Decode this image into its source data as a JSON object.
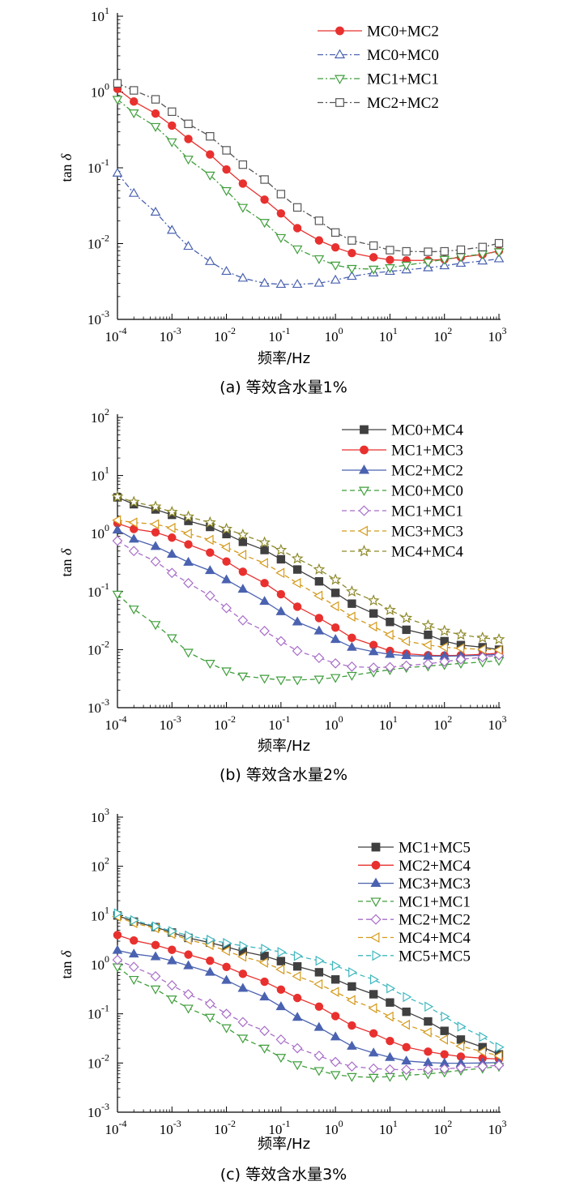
{
  "chart_data": [
    {
      "type": "line",
      "caption": "(a)  等效含水量1%",
      "xlabel": "频率/Hz",
      "ylabel_main": "tan ",
      "ylabel_symbol": "δ",
      "x_scale": "log",
      "y_scale": "log",
      "xlim": [
        0.0001,
        1000
      ],
      "ylim": [
        0.001,
        10
      ],
      "x_ticks": [
        {
          "mant": "10",
          "exp": "-4"
        },
        {
          "mant": "10",
          "exp": "-3"
        },
        {
          "mant": "10",
          "exp": "-2"
        },
        {
          "mant": "10",
          "exp": "-1"
        },
        {
          "mant": "10",
          "exp": "0"
        },
        {
          "mant": "10",
          "exp": "1"
        },
        {
          "mant": "10",
          "exp": "2"
        },
        {
          "mant": "10",
          "exp": "3"
        }
      ],
      "y_ticks": [
        {
          "mant": "10",
          "exp": "-3"
        },
        {
          "mant": "10",
          "exp": "-2"
        },
        {
          "mant": "10",
          "exp": "-1"
        },
        {
          "mant": "10",
          "exp": "0"
        },
        {
          "mant": "10",
          "exp": "1"
        }
      ],
      "legend_position": "top-right",
      "x": [
        0.0001,
        0.0002,
        0.0005,
        0.001,
        0.002,
        0.005,
        0.01,
        0.02,
        0.05,
        0.1,
        0.2,
        0.5,
        1,
        2,
        5,
        10,
        20,
        50,
        100,
        200,
        500,
        1000
      ],
      "series": [
        {
          "name": "MC0+MC2",
          "color": "#e8312f",
          "marker": "circle",
          "filled": true,
          "dash": "solid",
          "values": [
            1.1,
            0.75,
            0.52,
            0.36,
            0.24,
            0.15,
            0.095,
            0.062,
            0.038,
            0.025,
            0.016,
            0.011,
            0.0089,
            0.0075,
            0.0066,
            0.0061,
            0.006,
            0.006,
            0.0062,
            0.0066,
            0.0072,
            0.008
          ]
        },
        {
          "name": "MC0+MC0",
          "color": "#4a62b0",
          "marker": "triangle-up",
          "filled": false,
          "dash": "dashdot",
          "values": [
            0.085,
            0.046,
            0.026,
            0.015,
            0.0092,
            0.0058,
            0.0043,
            0.0035,
            0.003,
            0.0029,
            0.0029,
            0.003,
            0.0033,
            0.0037,
            0.0041,
            0.0043,
            0.0045,
            0.0048,
            0.0051,
            0.0055,
            0.0059,
            0.0063
          ]
        },
        {
          "name": "MC1+MC1",
          "color": "#3f9e3b",
          "marker": "triangle-down",
          "filled": false,
          "dash": "dashdot",
          "values": [
            0.8,
            0.53,
            0.35,
            0.22,
            0.13,
            0.08,
            0.05,
            0.03,
            0.019,
            0.012,
            0.0085,
            0.0063,
            0.0052,
            0.0047,
            0.0046,
            0.0048,
            0.0052,
            0.0057,
            0.0062,
            0.0067,
            0.0073,
            0.0078
          ]
        },
        {
          "name": "MC2+MC2",
          "color": "#555555",
          "marker": "square",
          "filled": false,
          "dash": "dashdot",
          "values": [
            1.3,
            1.05,
            0.8,
            0.55,
            0.38,
            0.26,
            0.17,
            0.11,
            0.07,
            0.045,
            0.03,
            0.02,
            0.014,
            0.011,
            0.0094,
            0.0082,
            0.0079,
            0.0078,
            0.0079,
            0.0083,
            0.009,
            0.0101
          ]
        }
      ]
    },
    {
      "type": "line",
      "caption": "(b)  等效含水量2%",
      "xlabel": "频率/Hz",
      "ylabel_main": "tan ",
      "ylabel_symbol": "δ",
      "x_scale": "log",
      "y_scale": "log",
      "xlim": [
        0.0001,
        1000
      ],
      "ylim": [
        0.001,
        100
      ],
      "x_ticks": [
        {
          "mant": "10",
          "exp": "-4"
        },
        {
          "mant": "10",
          "exp": "-3"
        },
        {
          "mant": "10",
          "exp": "-2"
        },
        {
          "mant": "10",
          "exp": "-1"
        },
        {
          "mant": "10",
          "exp": "0"
        },
        {
          "mant": "10",
          "exp": "1"
        },
        {
          "mant": "10",
          "exp": "2"
        },
        {
          "mant": "10",
          "exp": "3"
        }
      ],
      "y_ticks": [
        {
          "mant": "10",
          "exp": "-3"
        },
        {
          "mant": "10",
          "exp": "-2"
        },
        {
          "mant": "10",
          "exp": "-1"
        },
        {
          "mant": "10",
          "exp": "0"
        },
        {
          "mant": "10",
          "exp": "1"
        },
        {
          "mant": "10",
          "exp": "2"
        }
      ],
      "legend_position": "top-right",
      "x": [
        0.0001,
        0.0002,
        0.0005,
        0.001,
        0.002,
        0.005,
        0.01,
        0.02,
        0.05,
        0.1,
        0.2,
        0.5,
        1,
        2,
        5,
        10,
        20,
        50,
        100,
        200,
        500,
        1000
      ],
      "series": [
        {
          "name": "MC0+MC4",
          "color": "#404040",
          "marker": "square",
          "filled": true,
          "dash": "solid",
          "values": [
            4.2,
            3.2,
            2.6,
            2.1,
            1.65,
            1.3,
            0.98,
            0.72,
            0.52,
            0.36,
            0.24,
            0.15,
            0.095,
            0.062,
            0.042,
            0.03,
            0.022,
            0.018,
            0.014,
            0.012,
            0.011,
            0.01
          ]
        },
        {
          "name": "MC1+MC3",
          "color": "#e8312f",
          "marker": "circle",
          "filled": true,
          "dash": "solid",
          "values": [
            1.5,
            1.2,
            1.05,
            0.85,
            0.65,
            0.47,
            0.33,
            0.22,
            0.14,
            0.09,
            0.055,
            0.035,
            0.024,
            0.016,
            0.012,
            0.0095,
            0.0085,
            0.008,
            0.0079,
            0.008,
            0.0083,
            0.0087
          ]
        },
        {
          "name": "MC2+MC2",
          "color": "#4a62b0",
          "marker": "triangle-up",
          "filled": true,
          "dash": "solid",
          "values": [
            1.15,
            0.8,
            0.6,
            0.44,
            0.32,
            0.23,
            0.16,
            0.11,
            0.068,
            0.045,
            0.03,
            0.021,
            0.015,
            0.011,
            0.0092,
            0.0083,
            0.0079,
            0.0077,
            0.0077,
            0.0078,
            0.008,
            0.0083
          ]
        },
        {
          "name": "MC0+MC0",
          "color": "#3f9e3b",
          "marker": "triangle-down",
          "filled": false,
          "dash": "dashed",
          "values": [
            0.09,
            0.05,
            0.027,
            0.016,
            0.009,
            0.0058,
            0.0043,
            0.0035,
            0.0032,
            0.003,
            0.003,
            0.0031,
            0.0033,
            0.0036,
            0.0041,
            0.0045,
            0.0049,
            0.0052,
            0.0055,
            0.0058,
            0.0061,
            0.0065
          ]
        },
        {
          "name": "MC1+MC1",
          "color": "#a86ec8",
          "marker": "diamond",
          "filled": false,
          "dash": "dashed",
          "values": [
            0.75,
            0.5,
            0.33,
            0.21,
            0.14,
            0.085,
            0.052,
            0.032,
            0.021,
            0.014,
            0.0095,
            0.0072,
            0.0058,
            0.0051,
            0.0049,
            0.005,
            0.0053,
            0.0057,
            0.0062,
            0.0068,
            0.0074,
            0.008
          ]
        },
        {
          "name": "MC3+MC3",
          "color": "#d49a1c",
          "marker": "triangle-left",
          "filled": false,
          "dash": "dashed",
          "values": [
            1.7,
            1.55,
            1.45,
            1.25,
            1.0,
            0.78,
            0.58,
            0.43,
            0.31,
            0.21,
            0.14,
            0.085,
            0.056,
            0.037,
            0.025,
            0.018,
            0.014,
            0.012,
            0.011,
            0.0105,
            0.0101,
            0.0099
          ]
        },
        {
          "name": "MC4+MC4",
          "color": "#8e8a2c",
          "marker": "star",
          "filled": false,
          "dash": "dashed",
          "values": [
            4.3,
            3.5,
            2.9,
            2.35,
            1.95,
            1.55,
            1.2,
            0.95,
            0.7,
            0.52,
            0.37,
            0.24,
            0.16,
            0.1,
            0.07,
            0.048,
            0.035,
            0.026,
            0.021,
            0.018,
            0.016,
            0.015
          ]
        }
      ]
    },
    {
      "type": "line",
      "caption": "(c)  等效含水量3%",
      "xlabel": "频率/Hz",
      "ylabel_main": "tan ",
      "ylabel_symbol": "δ",
      "x_scale": "log",
      "y_scale": "log",
      "xlim": [
        0.0001,
        1000
      ],
      "ylim": [
        0.001,
        1000
      ],
      "x_ticks": [
        {
          "mant": "10",
          "exp": "-4"
        },
        {
          "mant": "10",
          "exp": "-3"
        },
        {
          "mant": "10",
          "exp": "-2"
        },
        {
          "mant": "10",
          "exp": "-1"
        },
        {
          "mant": "10",
          "exp": "0"
        },
        {
          "mant": "10",
          "exp": "1"
        },
        {
          "mant": "10",
          "exp": "2"
        },
        {
          "mant": "10",
          "exp": "3"
        }
      ],
      "y_ticks": [
        {
          "mant": "10",
          "exp": "-3"
        },
        {
          "mant": "10",
          "exp": "-2"
        },
        {
          "mant": "10",
          "exp": "-1"
        },
        {
          "mant": "10",
          "exp": "0"
        },
        {
          "mant": "10",
          "exp": "1"
        },
        {
          "mant": "10",
          "exp": "2"
        },
        {
          "mant": "10",
          "exp": "3"
        }
      ],
      "legend_position": "top-right",
      "x": [
        0.0001,
        0.0002,
        0.0005,
        0.001,
        0.002,
        0.005,
        0.01,
        0.02,
        0.05,
        0.1,
        0.2,
        0.5,
        1,
        2,
        5,
        10,
        20,
        50,
        100,
        200,
        500,
        1000
      ],
      "series": [
        {
          "name": "MC1+MC5",
          "color": "#404040",
          "marker": "square",
          "filled": true,
          "dash": "solid",
          "values": [
            10,
            7.5,
            5.8,
            4.5,
            3.5,
            2.8,
            2.3,
            1.85,
            1.5,
            1.18,
            0.92,
            0.7,
            0.5,
            0.36,
            0.25,
            0.17,
            0.11,
            0.07,
            0.045,
            0.03,
            0.021,
            0.015
          ]
        },
        {
          "name": "MC2+MC4",
          "color": "#e8312f",
          "marker": "circle",
          "filled": true,
          "dash": "solid",
          "values": [
            4.0,
            3.1,
            2.5,
            2.0,
            1.6,
            1.2,
            0.9,
            0.65,
            0.45,
            0.31,
            0.21,
            0.14,
            0.09,
            0.058,
            0.04,
            0.028,
            0.021,
            0.017,
            0.015,
            0.0135,
            0.0125,
            0.012
          ]
        },
        {
          "name": "MC3+MC3",
          "color": "#4a62b0",
          "marker": "triangle-up",
          "filled": true,
          "dash": "solid",
          "values": [
            1.95,
            1.65,
            1.45,
            1.2,
            0.95,
            0.7,
            0.48,
            0.33,
            0.22,
            0.14,
            0.085,
            0.053,
            0.034,
            0.022,
            0.016,
            0.013,
            0.011,
            0.0102,
            0.0099,
            0.0099,
            0.01,
            0.0102
          ]
        },
        {
          "name": "MC1+MC1",
          "color": "#3f9e3b",
          "marker": "triangle-down",
          "filled": false,
          "dash": "dashed",
          "values": [
            0.9,
            0.5,
            0.32,
            0.2,
            0.13,
            0.085,
            0.052,
            0.032,
            0.02,
            0.013,
            0.0092,
            0.007,
            0.0058,
            0.0053,
            0.0051,
            0.0053,
            0.0056,
            0.006,
            0.0065,
            0.0071,
            0.0078,
            0.0085
          ]
        },
        {
          "name": "MC2+MC2",
          "color": "#a86ec8",
          "marker": "diamond",
          "filled": false,
          "dash": "dashed",
          "values": [
            1.25,
            0.9,
            0.58,
            0.38,
            0.25,
            0.16,
            0.1,
            0.068,
            0.045,
            0.03,
            0.02,
            0.014,
            0.0105,
            0.0085,
            0.0077,
            0.0074,
            0.0073,
            0.0074,
            0.0076,
            0.008,
            0.0085,
            0.009
          ]
        },
        {
          "name": "MC4+MC4",
          "color": "#d49a1c",
          "marker": "triangle-left",
          "filled": false,
          "dash": "dashed",
          "values": [
            9.5,
            7.0,
            5.5,
            4.2,
            3.2,
            2.5,
            1.9,
            1.45,
            1.1,
            0.8,
            0.58,
            0.4,
            0.28,
            0.19,
            0.13,
            0.088,
            0.06,
            0.042,
            0.03,
            0.022,
            0.017,
            0.014
          ]
        },
        {
          "name": "MC5+MC5",
          "color": "#3fb7bf",
          "marker": "triangle-right",
          "filled": false,
          "dash": "dashed",
          "values": [
            11,
            8.0,
            6.0,
            4.8,
            3.9,
            3.2,
            2.75,
            2.4,
            2.1,
            1.8,
            1.5,
            1.2,
            0.95,
            0.7,
            0.5,
            0.33,
            0.22,
            0.14,
            0.088,
            0.055,
            0.034,
            0.021
          ]
        }
      ]
    }
  ]
}
